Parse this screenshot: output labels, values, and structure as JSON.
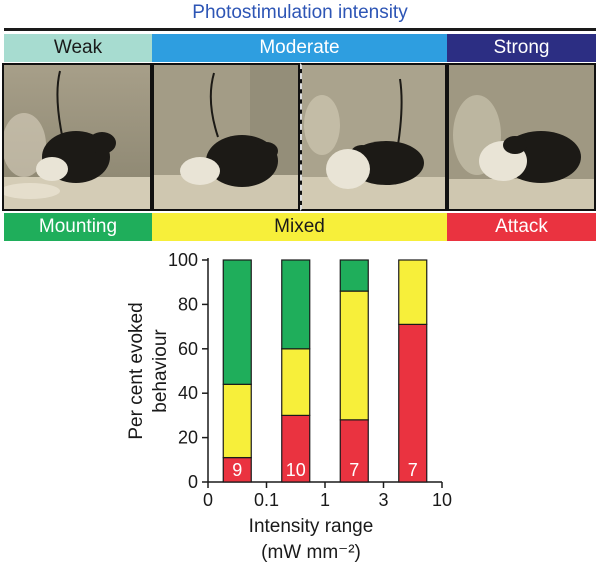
{
  "header": {
    "title": "Photostimulation intensity"
  },
  "intensity_bands": [
    {
      "label": "Weak",
      "bg": "#a7dcd0",
      "fg": "#1a1a1a"
    },
    {
      "label": "Moderate",
      "bg": "#2e9ee0",
      "fg": "#ffffff"
    },
    {
      "label": "Strong",
      "bg": "#2c2e83",
      "fg": "#ffffff"
    }
  ],
  "behaviour_bands": [
    {
      "label": "Mounting",
      "bg": "#1fae5b",
      "fg": "#ffffff"
    },
    {
      "label": "Mixed",
      "bg": "#f7ef3a",
      "fg": "#1a1a1a"
    },
    {
      "label": "Attack",
      "bg": "#ea3340",
      "fg": "#ffffff"
    }
  ],
  "colors": {
    "attack": "#ea3340",
    "mixed": "#f7ef3a",
    "mounting": "#1fae5b",
    "sepia_light": "#bdb39a",
    "sepia_dark": "#5c5645",
    "mouse_dark": "#1c1a16",
    "mouse_white": "#e9e4d6"
  },
  "chart_data": {
    "type": "bar",
    "stacked": true,
    "ylabel_lines": [
      "Per cent evoked",
      "behaviour"
    ],
    "xlabel_lines": [
      "Intensity range",
      "(mW mm⁻²)"
    ],
    "ylim": [
      0,
      100
    ],
    "yticks": [
      "0",
      "20",
      "40",
      "60",
      "80",
      "100"
    ],
    "xticks": [
      "0",
      "0.1",
      "1",
      "3",
      "10"
    ],
    "categories": [
      "0-0.1",
      "0.1-1",
      "1-3",
      "3-10"
    ],
    "n_labels": [
      "9",
      "10",
      "7",
      "7"
    ],
    "series": [
      {
        "name": "Attack",
        "values": [
          11,
          30,
          28,
          71
        ]
      },
      {
        "name": "Mixed",
        "values": [
          33,
          30,
          58,
          29
        ]
      },
      {
        "name": "Mounting",
        "values": [
          56,
          40,
          14,
          0
        ]
      }
    ]
  }
}
